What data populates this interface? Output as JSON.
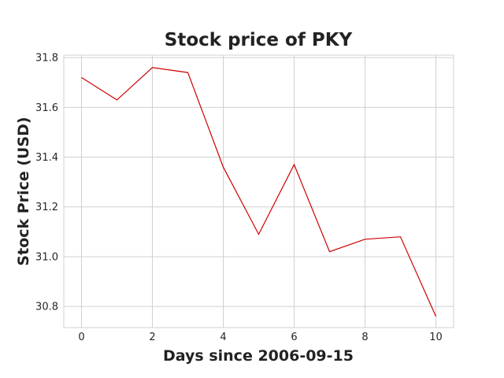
{
  "chart_data": {
    "type": "line",
    "title": "Stock price of PKY",
    "xlabel": "Days since 2006-09-15",
    "ylabel": "Stock Price (USD)",
    "x": [
      0,
      1,
      2,
      3,
      4,
      5,
      6,
      7,
      8,
      9,
      10
    ],
    "series": [
      {
        "values": [
          31.72,
          31.63,
          31.76,
          31.74,
          31.36,
          31.09,
          31.37,
          31.02,
          31.07,
          31.08,
          30.76
        ]
      }
    ],
    "xticks": [
      "0",
      "2",
      "4",
      "6",
      "8",
      "10"
    ],
    "yticks": [
      "30.8",
      "31.0",
      "31.2",
      "31.4",
      "31.6",
      "31.8"
    ],
    "xlim": [
      -0.5,
      10.5
    ],
    "ylim": [
      30.715,
      31.81
    ],
    "grid": true,
    "colors": {
      "line": "#cc0000"
    }
  }
}
